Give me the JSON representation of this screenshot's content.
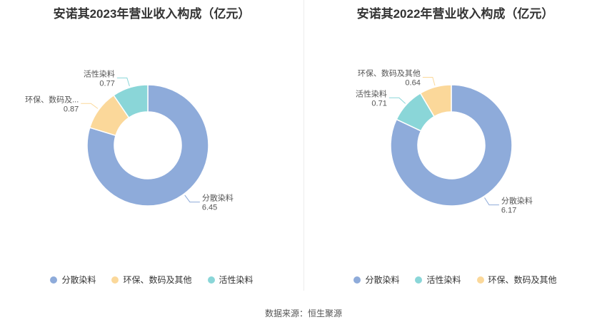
{
  "chart_data": [
    {
      "type": "pie",
      "title": "安诺其2023年营业收入构成（亿元）",
      "slices": [
        {
          "name": "分散染料",
          "label": "分散染料",
          "value": 6.45,
          "display": "6.45",
          "color": "#8eabda"
        },
        {
          "name": "环保、数码及其他",
          "label": "环保、数码及...",
          "value": 0.87,
          "display": "0.87",
          "color": "#fbd89a"
        },
        {
          "name": "活性染料",
          "label": "活性染料",
          "value": 0.77,
          "display": "0.77",
          "color": "#8ad6d8"
        }
      ],
      "legend": [
        {
          "name": "分散染料",
          "color": "#8eabda"
        },
        {
          "name": "环保、数码及其他",
          "color": "#fbd89a"
        },
        {
          "name": "活性染料",
          "color": "#8ad6d8"
        }
      ],
      "legend_position": "bottom"
    },
    {
      "type": "pie",
      "title": "安诺其2022年营业收入构成（亿元）",
      "slices": [
        {
          "name": "分散染料",
          "label": "分散染料",
          "value": 6.17,
          "display": "6.17",
          "color": "#8eabda"
        },
        {
          "name": "活性染料",
          "label": "活性染料",
          "value": 0.71,
          "display": "0.71",
          "color": "#8ad6d8"
        },
        {
          "name": "环保、数码及其他",
          "label": "环保、数码及其他",
          "value": 0.64,
          "display": "0.64",
          "color": "#fbd89a"
        }
      ],
      "legend": [
        {
          "name": "分散染料",
          "color": "#8eabda"
        },
        {
          "name": "活性染料",
          "color": "#8ad6d8"
        },
        {
          "name": "环保、数码及其他",
          "color": "#fbd89a"
        }
      ],
      "legend_position": "bottom"
    }
  ],
  "source": "数据来源：恒生聚源"
}
